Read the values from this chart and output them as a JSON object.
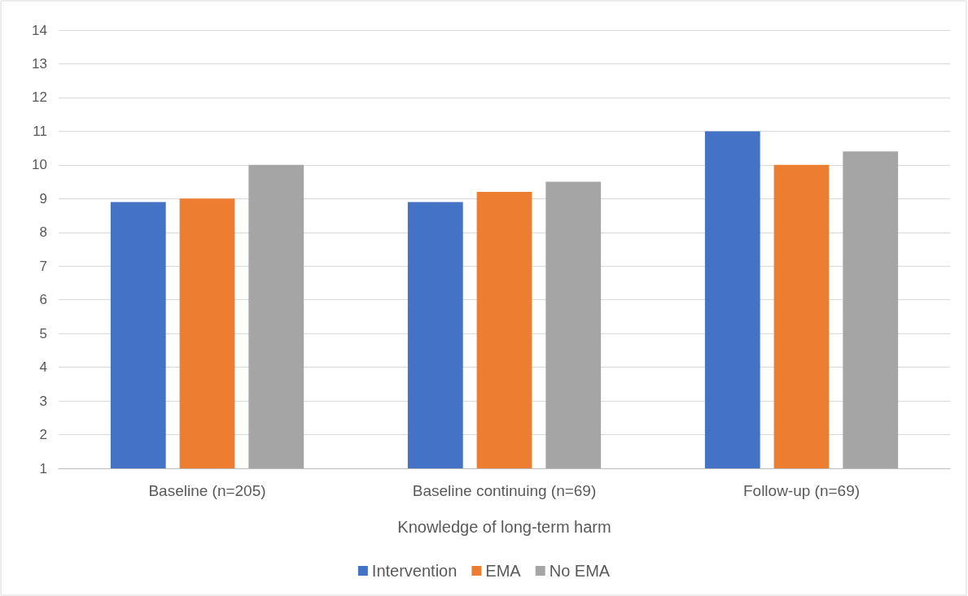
{
  "chart_data": {
    "type": "bar",
    "xlabel": "Knowledge of long-term harm",
    "categories": [
      "Baseline (n=205)",
      "Baseline continuing (n=69)",
      "Follow-up (n=69)"
    ],
    "series": [
      {
        "name": "Intervention",
        "color": "#4472c4",
        "values": [
          8.9,
          8.9,
          11.0
        ]
      },
      {
        "name": "EMA",
        "color": "#ed7d31",
        "values": [
          9.0,
          9.2,
          10.0
        ]
      },
      {
        "name": "No EMA",
        "color": "#a5a5a5",
        "values": [
          10.0,
          9.5,
          10.4
        ]
      }
    ],
    "ylim": [
      1,
      14
    ],
    "yticks": [
      1,
      2,
      3,
      4,
      5,
      6,
      7,
      8,
      9,
      10,
      11,
      12,
      13,
      14
    ],
    "grid": "y",
    "legend": "bottom"
  }
}
